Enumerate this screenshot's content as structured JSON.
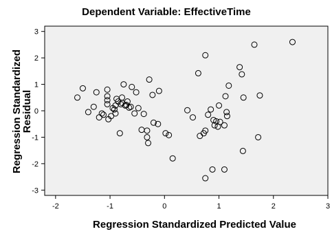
{
  "chart_data": {
    "type": "scatter",
    "title": "Dependent Variable: EffectiveTime",
    "xlabel": "Regression Standardized Predicted Value",
    "ylabel_lines": [
      "Regression Standardized",
      "Residual"
    ],
    "xlim": [
      -2.2,
      3.0
    ],
    "ylim": [
      -3.2,
      3.2
    ],
    "x_ticks": [
      -2,
      -1,
      0,
      1,
      2,
      3
    ],
    "y_ticks": [
      -3,
      -2,
      -1,
      0,
      1,
      2,
      3
    ],
    "grid": false,
    "plot_background": "#f0f0f0",
    "marker": "open-circle",
    "marker_color": "#000000",
    "points": [
      [
        -1.6,
        0.5
      ],
      [
        -1.5,
        0.85
      ],
      [
        -1.4,
        -0.05
      ],
      [
        -1.3,
        0.15
      ],
      [
        -1.25,
        0.7
      ],
      [
        -1.2,
        -0.25
      ],
      [
        -1.15,
        -0.1
      ],
      [
        -1.12,
        -0.15
      ],
      [
        -1.05,
        0.8
      ],
      [
        -1.05,
        0.55
      ],
      [
        -1.05,
        0.4
      ],
      [
        -1.05,
        0.25
      ],
      [
        -1.03,
        -0.32
      ],
      [
        -0.98,
        -0.2
      ],
      [
        -0.95,
        0.1
      ],
      [
        -0.92,
        0.05
      ],
      [
        -0.9,
        0.2
      ],
      [
        -0.9,
        -0.1
      ],
      [
        -0.88,
        0.45
      ],
      [
        -0.85,
        0.35
      ],
      [
        -0.82,
        -0.85
      ],
      [
        -0.8,
        0.25
      ],
      [
        -0.78,
        0.5
      ],
      [
        -0.78,
        0.3
      ],
      [
        -0.75,
        1.0
      ],
      [
        -0.72,
        0.2
      ],
      [
        -0.7,
        0.22
      ],
      [
        -0.68,
        0.35
      ],
      [
        -0.65,
        0.12
      ],
      [
        -0.62,
        0.15
      ],
      [
        -0.6,
        0.9
      ],
      [
        -0.55,
        -0.1
      ],
      [
        -0.52,
        0.7
      ],
      [
        -0.48,
        0.1
      ],
      [
        -0.42,
        -0.72
      ],
      [
        -0.38,
        -0.12
      ],
      [
        -0.32,
        -0.75
      ],
      [
        -0.32,
        -1.0
      ],
      [
        -0.3,
        -1.22
      ],
      [
        -0.28,
        1.18
      ],
      [
        -0.22,
        0.6
      ],
      [
        -0.2,
        -0.45
      ],
      [
        -0.12,
        -0.5
      ],
      [
        -0.1,
        0.75
      ],
      [
        0.02,
        -0.85
      ],
      [
        0.08,
        -0.92
      ],
      [
        0.15,
        -1.8
      ],
      [
        0.42,
        0.02
      ],
      [
        0.52,
        -0.25
      ],
      [
        0.62,
        1.42
      ],
      [
        0.65,
        -0.95
      ],
      [
        0.72,
        -0.85
      ],
      [
        0.75,
        -0.75
      ],
      [
        0.75,
        2.1
      ],
      [
        0.75,
        -2.55
      ],
      [
        0.8,
        -0.15
      ],
      [
        0.85,
        0.05
      ],
      [
        0.88,
        -2.22
      ],
      [
        0.9,
        -0.35
      ],
      [
        0.92,
        -0.55
      ],
      [
        0.95,
        -0.4
      ],
      [
        0.98,
        -0.6
      ],
      [
        1.0,
        0.2
      ],
      [
        1.02,
        -0.42
      ],
      [
        1.1,
        -0.55
      ],
      [
        1.1,
        -2.22
      ],
      [
        1.12,
        0.55
      ],
      [
        1.14,
        -0.05
      ],
      [
        1.15,
        -0.2
      ],
      [
        1.18,
        0.95
      ],
      [
        1.38,
        1.65
      ],
      [
        1.42,
        1.38
      ],
      [
        1.44,
        -1.52
      ],
      [
        1.45,
        0.5
      ],
      [
        1.65,
        2.5
      ],
      [
        1.72,
        -1.0
      ],
      [
        1.75,
        0.58
      ],
      [
        2.35,
        2.6
      ]
    ]
  }
}
